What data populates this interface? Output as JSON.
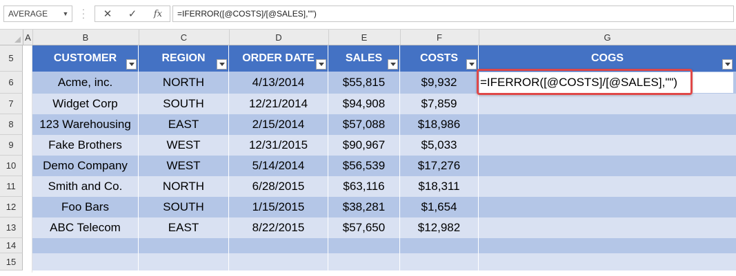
{
  "formula_bar": {
    "name_box": "AVERAGE",
    "fx_label": "fx",
    "formula": "=IFERROR([@COSTS]/[@SALES],\"\")"
  },
  "column_headers": [
    "A",
    "B",
    "C",
    "D",
    "E",
    "F",
    "G"
  ],
  "row_headers": [
    "5",
    "6",
    "7",
    "8",
    "9",
    "10",
    "11",
    "12",
    "13",
    "14",
    "15"
  ],
  "table": {
    "headers": [
      "CUSTOMER",
      "REGION",
      "ORDER DATE",
      "SALES",
      "COSTS",
      "COGS"
    ],
    "rows": [
      [
        "Acme, inc.",
        "NORTH",
        "4/13/2014",
        "$55,815",
        "$9,932",
        ""
      ],
      [
        "Widget Corp",
        "SOUTH",
        "12/21/2014",
        "$94,908",
        "$7,859",
        ""
      ],
      [
        "123 Warehousing",
        "EAST",
        "2/15/2014",
        "$57,088",
        "$18,986",
        ""
      ],
      [
        "Fake Brothers",
        "WEST",
        "12/31/2015",
        "$90,967",
        "$5,033",
        ""
      ],
      [
        "Demo Company",
        "WEST",
        "5/14/2014",
        "$56,539",
        "$17,276",
        ""
      ],
      [
        "Smith and Co.",
        "NORTH",
        "6/28/2015",
        "$63,116",
        "$18,311",
        ""
      ],
      [
        "Foo Bars",
        "SOUTH",
        "1/15/2015",
        "$38,281",
        "$1,654",
        ""
      ],
      [
        "ABC Telecom",
        "EAST",
        "8/22/2015",
        "$57,650",
        "$12,982",
        ""
      ]
    ],
    "editing_cell_text": "=IFERROR([@COSTS]/[@SALES],\"\")"
  },
  "colors": {
    "header_fill": "#4472c4",
    "band_dark": "#b4c6e7",
    "band_light": "#d9e1f2",
    "highlight_border": "#e04848"
  }
}
